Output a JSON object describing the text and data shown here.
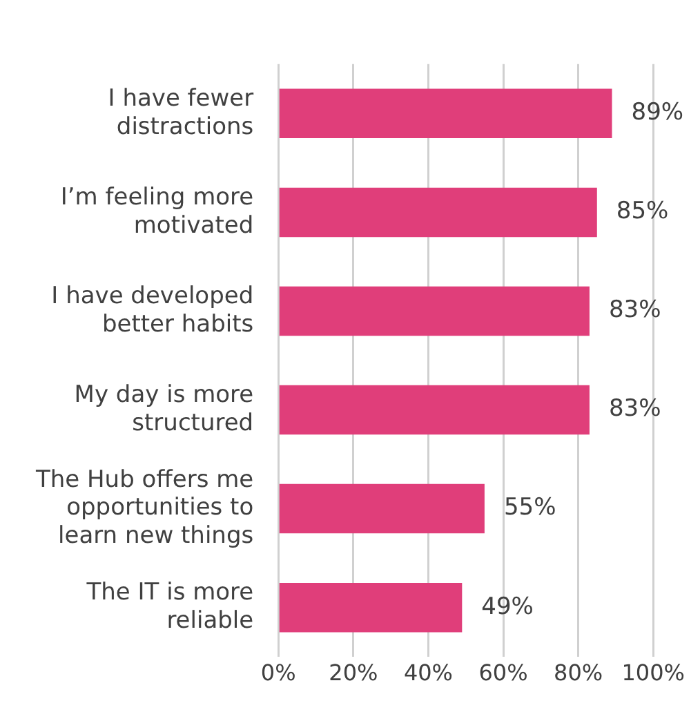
{
  "chart_data": {
    "type": "bar",
    "orientation": "horizontal",
    "categories": [
      "I have fewer distractions",
      "I’m feeling more motivated",
      "I have developed better habits",
      "My day is more structured",
      "The Hub offers me opportunities to learn new things",
      "The IT is more reliable"
    ],
    "values": [
      89,
      85,
      83,
      83,
      55,
      49
    ],
    "value_labels": [
      "89%",
      "85%",
      "83%",
      "83%",
      "55%",
      "49%"
    ],
    "color": "#e03e7a",
    "xlim": [
      0,
      100
    ],
    "xticks": [
      {
        "value": 0,
        "label": "0%"
      },
      {
        "value": 20,
        "label": "20%"
      },
      {
        "value": 40,
        "label": "40%"
      },
      {
        "value": 60,
        "label": "60%"
      },
      {
        "value": 80,
        "label": "80%"
      },
      {
        "value": 100,
        "label": "100%"
      }
    ],
    "grid": "x",
    "legend": false
  }
}
